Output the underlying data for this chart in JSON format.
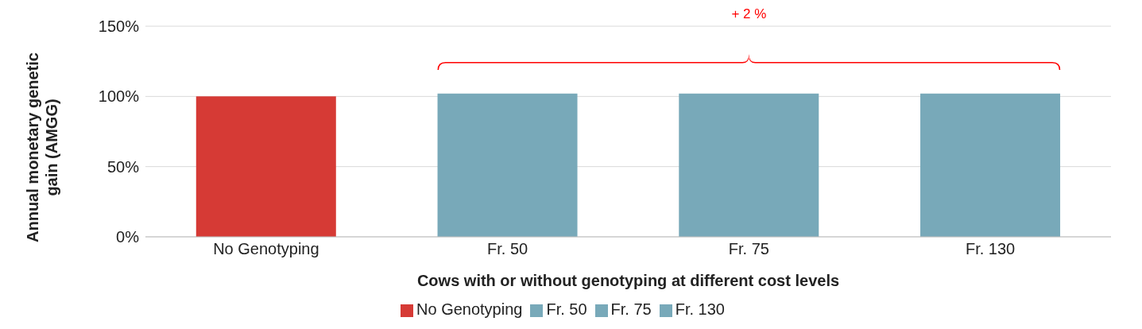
{
  "chart_data": {
    "type": "bar",
    "xlabel": "Cows with or without genotyping at different cost levels",
    "ylabel": "Annual monetary genetic gain (AMGG)",
    "categories": [
      "No Genotyping",
      "Fr. 50",
      "Fr. 75",
      "Fr. 130"
    ],
    "series": [
      {
        "name": "No Genotyping",
        "color": "#d63a35",
        "values": [
          100,
          null,
          null,
          null
        ]
      },
      {
        "name": "Fr. 50",
        "color": "#78a9b9",
        "values": [
          null,
          102,
          null,
          null
        ]
      },
      {
        "name": "Fr. 75",
        "color": "#78a9b9",
        "values": [
          null,
          null,
          102,
          null
        ]
      },
      {
        "name": "Fr. 130",
        "color": "#78a9b9",
        "values": [
          null,
          null,
          null,
          102
        ]
      }
    ],
    "ylim": [
      0,
      150
    ],
    "yticks": [
      {
        "value": 0,
        "label": "0%"
      },
      {
        "value": 50,
        "label": "50%"
      },
      {
        "value": 100,
        "label": "100%"
      },
      {
        "value": 150,
        "label": "150%"
      }
    ],
    "grid": "y",
    "legend": "bottom",
    "annotations": [
      "+ 2 %"
    ]
  }
}
